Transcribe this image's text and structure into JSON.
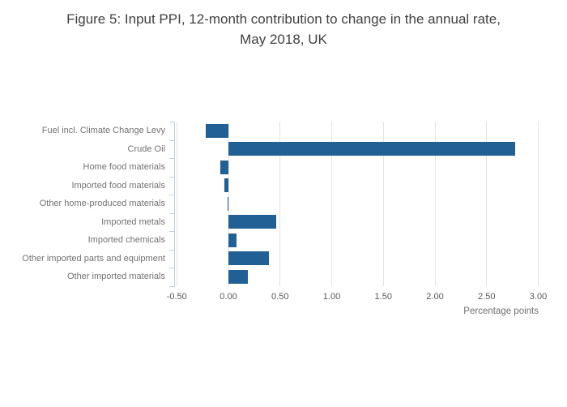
{
  "chart_data": {
    "type": "bar",
    "orientation": "horizontal",
    "title": "Figure 5: Input PPI, 12-month contribution to change in the annual rate,\nMay 2018, UK",
    "xlabel": "Percentage points",
    "ylabel": "",
    "categories": [
      "Fuel incl. Climate Change Levy",
      "Crude Oil",
      "Home food materials",
      "Imported food materials",
      "Other home-produced materials",
      "Imported metals",
      "Imported chemicals",
      "Other imported parts and equipment",
      "Other imported materials"
    ],
    "values": [
      -0.22,
      2.78,
      -0.08,
      -0.04,
      -0.01,
      0.46,
      0.08,
      0.39,
      0.19
    ],
    "xlim": [
      -0.5,
      3.0
    ],
    "x_ticks": [
      -0.5,
      0,
      0.5,
      1,
      1.5,
      2,
      2.5,
      3
    ],
    "x_tick_labels": [
      "-0.50",
      "0.00",
      "0.50",
      "1.00",
      "1.50",
      "2.00",
      "2.50",
      "3.00"
    ],
    "grid": "vertical",
    "legend": "none",
    "colors": {
      "bar": "#206095",
      "grid": "#e4e4e4",
      "axis": "#c4cfe0",
      "title": "#414042",
      "category_label": "#737373",
      "tick_label": "#595959",
      "axis_title": "#707070"
    }
  }
}
